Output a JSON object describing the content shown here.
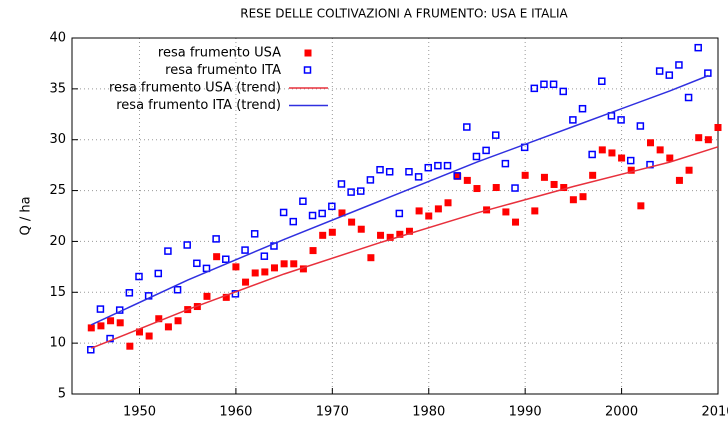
{
  "chart_data": {
    "type": "scatter",
    "title": "RESE DELLE COLTIVAZIONI A FRUMENTO: USA E ITALIA",
    "y_label": "Q / ha",
    "xlim": [
      1943,
      2010
    ],
    "ylim": [
      5,
      40
    ],
    "xticks": [
      1950,
      1960,
      1970,
      1980,
      1990,
      2000,
      2010
    ],
    "yticks": [
      5,
      10,
      15,
      20,
      25,
      30,
      35,
      40
    ],
    "grid": true,
    "legend": "top-left",
    "series": [
      {
        "name": "resa frumento USA",
        "color": "#ff0000",
        "style": "points",
        "marker": "filled-square",
        "x": [
          1945,
          1946,
          1947,
          1948,
          1949,
          1950,
          1951,
          1952,
          1953,
          1954,
          1955,
          1956,
          1957,
          1958,
          1959,
          1960,
          1961,
          1962,
          1963,
          1964,
          1965,
          1966,
          1967,
          1968,
          1969,
          1970,
          1971,
          1972,
          1973,
          1974,
          1975,
          1976,
          1977,
          1978,
          1979,
          1980,
          1981,
          1982,
          1983,
          1984,
          1985,
          1986,
          1987,
          1988,
          1989,
          1990,
          1991,
          1992,
          1993,
          1994,
          1995,
          1996,
          1997,
          1998,
          1999,
          2000,
          2001,
          2002,
          2003,
          2004,
          2005,
          2006,
          2007,
          2008,
          2009,
          2010
        ],
        "values": [
          11.5,
          11.7,
          12.2,
          12.0,
          9.7,
          11.1,
          10.7,
          12.4,
          11.6,
          12.2,
          13.3,
          13.6,
          14.6,
          18.5,
          14.5,
          17.5,
          16.0,
          16.9,
          17.0,
          17.4,
          17.8,
          17.8,
          17.3,
          19.1,
          20.6,
          20.9,
          22.8,
          21.9,
          21.2,
          18.4,
          20.6,
          20.4,
          20.7,
          21.0,
          23.0,
          22.5,
          23.2,
          23.8,
          26.4,
          26.0,
          25.2,
          23.1,
          25.3,
          22.9,
          21.9,
          26.5,
          23.0,
          26.3,
          25.6,
          25.3,
          24.1,
          24.4,
          26.5,
          29.0,
          28.7,
          28.2,
          27.0,
          23.5,
          29.7,
          29.0,
          28.2,
          26.0,
          27.0,
          30.2,
          30.0,
          31.2
        ]
      },
      {
        "name": "resa frumento ITA",
        "color": "#0000ff",
        "style": "points",
        "marker": "open-square",
        "x": [
          1945,
          1946,
          1947,
          1948,
          1949,
          1950,
          1951,
          1952,
          1953,
          1954,
          1955,
          1956,
          1957,
          1958,
          1959,
          1960,
          1961,
          1962,
          1963,
          1964,
          1965,
          1966,
          1967,
          1968,
          1969,
          1970,
          1971,
          1972,
          1973,
          1974,
          1975,
          1976,
          1977,
          1978,
          1979,
          1980,
          1981,
          1982,
          1983,
          1984,
          1985,
          1986,
          1987,
          1988,
          1989,
          1990,
          1991,
          1992,
          1993,
          1994,
          1995,
          1996,
          1997,
          1998,
          1999,
          2000,
          2001,
          2002,
          2003,
          2004,
          2005,
          2006,
          2007,
          2008,
          2009
        ],
        "values": [
          9.3,
          13.3,
          10.4,
          13.2,
          14.9,
          16.5,
          14.6,
          16.8,
          19.0,
          15.2,
          19.6,
          17.8,
          17.3,
          20.2,
          18.2,
          14.8,
          19.1,
          20.7,
          18.5,
          19.5,
          22.8,
          21.9,
          23.9,
          22.5,
          22.7,
          23.4,
          25.6,
          24.8,
          24.9,
          26.0,
          27.0,
          26.8,
          22.7,
          26.8,
          26.3,
          27.2,
          27.4,
          27.4,
          26.4,
          31.2,
          28.3,
          28.9,
          30.4,
          27.6,
          25.2,
          29.2,
          35.0,
          35.4,
          35.4,
          34.7,
          31.9,
          33.0,
          28.5,
          35.7,
          32.3,
          31.9,
          27.9,
          31.3,
          27.5,
          36.7,
          36.3,
          37.3,
          34.1,
          39.0,
          36.5
        ]
      },
      {
        "name": "resa frumento USA (trend)",
        "color": "#e8303c",
        "style": "line",
        "x": [
          1945,
          1955,
          1965,
          1975,
          1985,
          1995,
          2005,
          2010
        ],
        "values": [
          9.5,
          13.3,
          16.8,
          19.9,
          22.8,
          25.4,
          27.8,
          29.3
        ]
      },
      {
        "name": "resa frumento ITA (trend)",
        "color": "#3030e0",
        "style": "line",
        "x": [
          1945,
          1955,
          1965,
          1975,
          1985,
          1995,
          2005,
          2009
        ],
        "values": [
          11.8,
          16.2,
          20.2,
          24.0,
          27.8,
          31.3,
          34.8,
          36.3
        ]
      }
    ]
  }
}
